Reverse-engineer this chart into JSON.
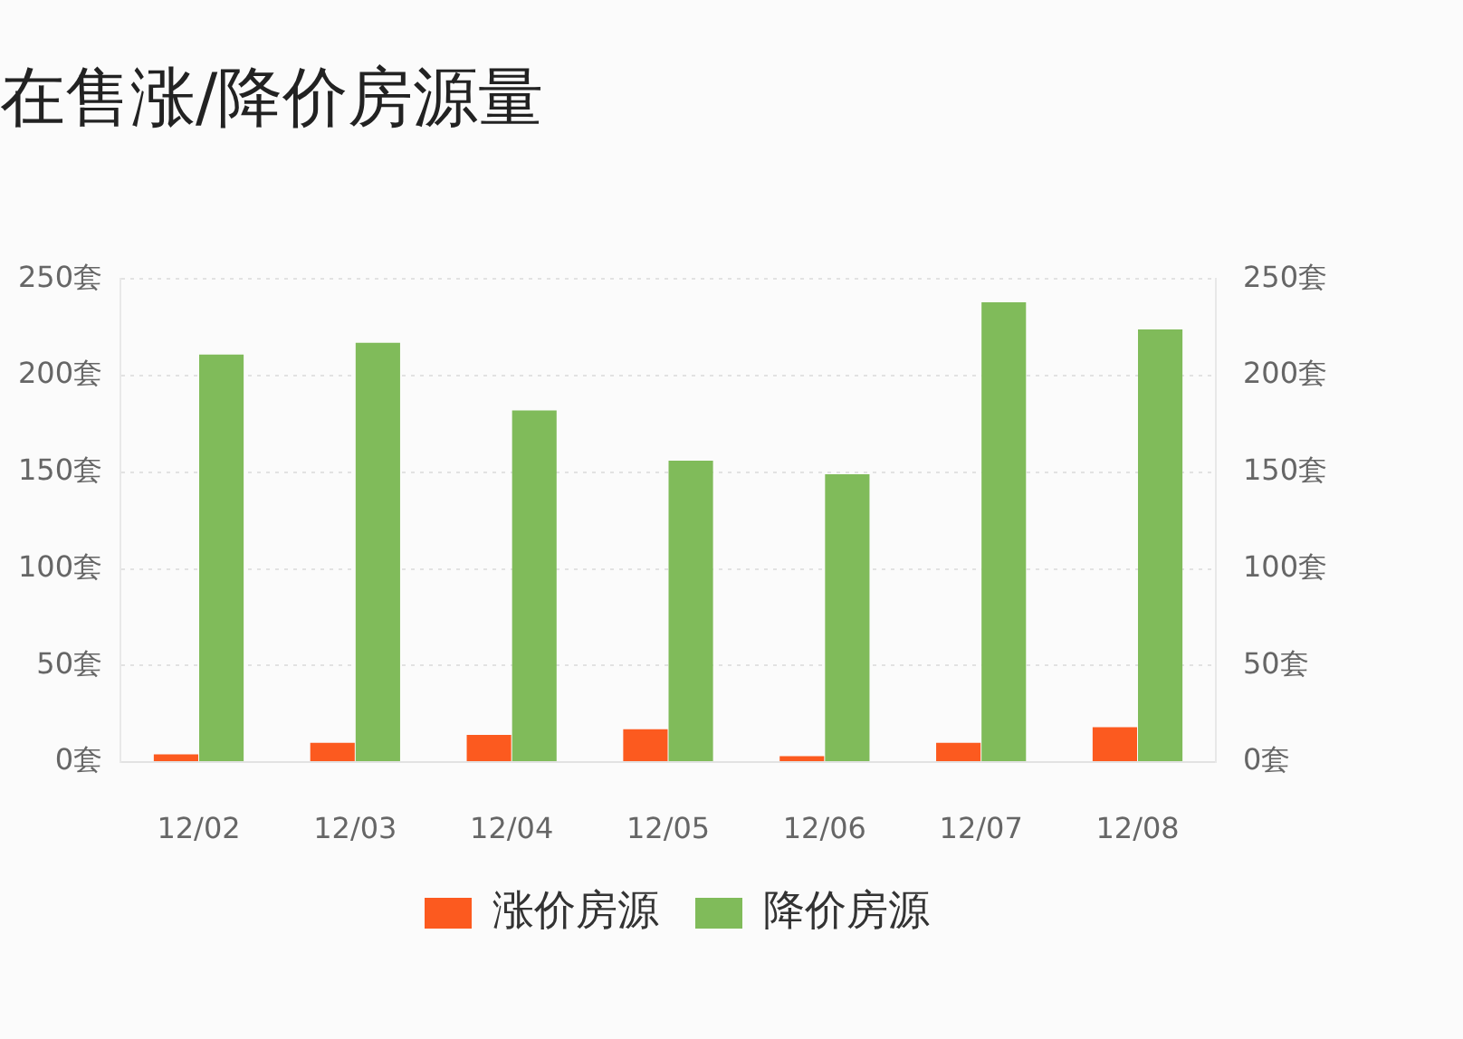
{
  "chart_data": {
    "type": "bar",
    "title": "在售涨/降价房源量",
    "categories": [
      "12/02",
      "12/03",
      "12/04",
      "12/05",
      "12/06",
      "12/07",
      "12/08"
    ],
    "series": [
      {
        "name": "涨价房源",
        "color": "#fc5a1f",
        "values": [
          4,
          10,
          14,
          17,
          3,
          10,
          18
        ]
      },
      {
        "name": "降价房源",
        "color": "#80bb5a",
        "values": [
          211,
          217,
          182,
          156,
          149,
          238,
          224
        ]
      }
    ],
    "ylim": [
      0,
      250
    ],
    "yticks": [
      {
        "value": 0,
        "label": "0套"
      },
      {
        "value": 50,
        "label": "50套"
      },
      {
        "value": 100,
        "label": "100套"
      },
      {
        "value": 150,
        "label": "150套"
      },
      {
        "value": 200,
        "label": "200套"
      },
      {
        "value": 250,
        "label": "250套"
      }
    ],
    "y2lim": [
      0,
      250
    ],
    "y2ticks": [
      {
        "value": 0,
        "label": "0套"
      },
      {
        "value": 50,
        "label": "50套"
      },
      {
        "value": 100,
        "label": "100套"
      },
      {
        "value": 150,
        "label": "150套"
      },
      {
        "value": 200,
        "label": "200套"
      },
      {
        "value": 250,
        "label": "250套"
      }
    ],
    "grid": "y",
    "legend": "bottom"
  }
}
